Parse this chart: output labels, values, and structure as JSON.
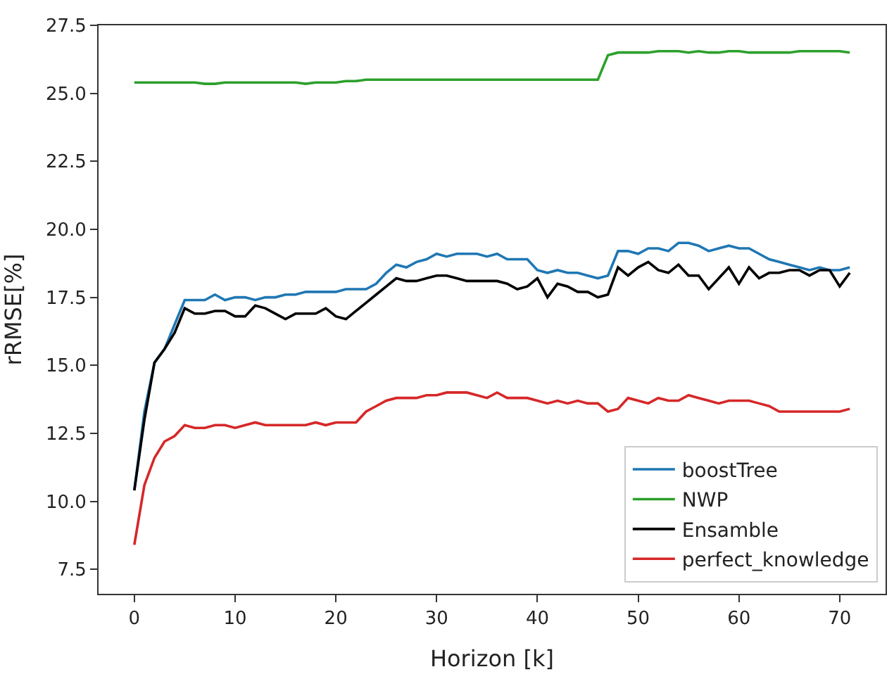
{
  "chart_data": {
    "type": "line",
    "xlabel": "Horizon [k]",
    "ylabel": "rRMSE[%]",
    "x": [
      0,
      1,
      2,
      3,
      4,
      5,
      6,
      7,
      8,
      9,
      10,
      11,
      12,
      13,
      14,
      15,
      16,
      17,
      18,
      19,
      20,
      21,
      22,
      23,
      24,
      25,
      26,
      27,
      28,
      29,
      30,
      31,
      32,
      33,
      34,
      35,
      36,
      37,
      38,
      39,
      40,
      41,
      42,
      43,
      44,
      45,
      46,
      47,
      48,
      49,
      50,
      51,
      52,
      53,
      54,
      55,
      56,
      57,
      58,
      59,
      60,
      61,
      62,
      63,
      64,
      65,
      66,
      67,
      68,
      69,
      70,
      71
    ],
    "series": [
      {
        "name": "boostTree",
        "color": "#1f77b4",
        "values": [
          10.4,
          13.3,
          15.1,
          15.6,
          16.5,
          17.4,
          17.4,
          17.4,
          17.6,
          17.4,
          17.5,
          17.5,
          17.4,
          17.5,
          17.5,
          17.6,
          17.6,
          17.7,
          17.7,
          17.7,
          17.7,
          17.8,
          17.8,
          17.8,
          18.0,
          18.4,
          18.7,
          18.6,
          18.8,
          18.9,
          19.1,
          19.0,
          19.1,
          19.1,
          19.1,
          19.0,
          19.1,
          18.9,
          18.9,
          18.9,
          18.5,
          18.4,
          18.5,
          18.4,
          18.4,
          18.3,
          18.2,
          18.3,
          19.2,
          19.2,
          19.1,
          19.3,
          19.3,
          19.2,
          19.5,
          19.5,
          19.4,
          19.2,
          19.3,
          19.4,
          19.3,
          19.3,
          19.1,
          18.9,
          18.8,
          18.7,
          18.6,
          18.5,
          18.6,
          18.5,
          18.5,
          18.6
        ]
      },
      {
        "name": "NWP",
        "color": "#2ca02c",
        "values": [
          25.4,
          25.4,
          25.4,
          25.4,
          25.4,
          25.4,
          25.4,
          25.35,
          25.35,
          25.4,
          25.4,
          25.4,
          25.4,
          25.4,
          25.4,
          25.4,
          25.4,
          25.35,
          25.4,
          25.4,
          25.4,
          25.45,
          25.45,
          25.5,
          25.5,
          25.5,
          25.5,
          25.5,
          25.5,
          25.5,
          25.5,
          25.5,
          25.5,
          25.5,
          25.5,
          25.5,
          25.5,
          25.5,
          25.5,
          25.5,
          25.5,
          25.5,
          25.5,
          25.5,
          25.5,
          25.5,
          25.5,
          26.4,
          26.5,
          26.5,
          26.5,
          26.5,
          26.55,
          26.55,
          26.55,
          26.5,
          26.55,
          26.5,
          26.5,
          26.55,
          26.55,
          26.5,
          26.5,
          26.5,
          26.5,
          26.5,
          26.55,
          26.55,
          26.55,
          26.55,
          26.55,
          26.5
        ]
      },
      {
        "name": "Ensamble",
        "color": "#000000",
        "values": [
          10.4,
          13.0,
          15.1,
          15.6,
          16.2,
          17.1,
          16.9,
          16.9,
          17.0,
          17.0,
          16.8,
          16.8,
          17.2,
          17.1,
          16.9,
          16.7,
          16.9,
          16.9,
          16.9,
          17.1,
          16.8,
          16.7,
          17.0,
          17.3,
          17.6,
          17.9,
          18.2,
          18.1,
          18.1,
          18.2,
          18.3,
          18.3,
          18.2,
          18.1,
          18.1,
          18.1,
          18.1,
          18.0,
          17.8,
          17.9,
          18.2,
          17.5,
          18.0,
          17.9,
          17.7,
          17.7,
          17.5,
          17.6,
          18.6,
          18.3,
          18.6,
          18.8,
          18.5,
          18.4,
          18.7,
          18.3,
          18.3,
          17.8,
          18.2,
          18.6,
          18.0,
          18.6,
          18.2,
          18.4,
          18.4,
          18.5,
          18.5,
          18.3,
          18.5,
          18.5,
          17.9,
          18.4
        ]
      },
      {
        "name": "perfect_knowledge",
        "color": "#d62728",
        "values": [
          8.4,
          10.6,
          11.6,
          12.2,
          12.4,
          12.8,
          12.7,
          12.7,
          12.8,
          12.8,
          12.7,
          12.8,
          12.9,
          12.8,
          12.8,
          12.8,
          12.8,
          12.8,
          12.9,
          12.8,
          12.9,
          12.9,
          12.9,
          13.3,
          13.5,
          13.7,
          13.8,
          13.8,
          13.8,
          13.9,
          13.9,
          14.0,
          14.0,
          14.0,
          13.9,
          13.8,
          14.0,
          13.8,
          13.8,
          13.8,
          13.7,
          13.6,
          13.7,
          13.6,
          13.7,
          13.6,
          13.6,
          13.3,
          13.4,
          13.8,
          13.7,
          13.6,
          13.8,
          13.7,
          13.7,
          13.9,
          13.8,
          13.7,
          13.6,
          13.7,
          13.7,
          13.7,
          13.6,
          13.5,
          13.3,
          13.3,
          13.3,
          13.3,
          13.3,
          13.3,
          13.3,
          13.4
        ]
      }
    ],
    "xlim": [
      -3.55,
      74.55
    ],
    "xticks": [
      0,
      10,
      20,
      30,
      40,
      50,
      60,
      70
    ],
    "ylim": [
      6.6,
      27.5
    ],
    "yticks": [
      {
        "value": 7.5,
        "label": "7.5"
      },
      {
        "value": 10,
        "label": "10.0"
      },
      {
        "value": 12.5,
        "label": "12.5"
      },
      {
        "value": 15,
        "label": "15.0"
      },
      {
        "value": 17.5,
        "label": "17.5"
      },
      {
        "value": 20,
        "label": "20.0"
      },
      {
        "value": 22.5,
        "label": "22.5"
      },
      {
        "value": 25,
        "label": "25.0"
      },
      {
        "value": 27.5,
        "label": "27.5"
      }
    ],
    "legend": "bottom right",
    "marker": "none",
    "line_style": "solid"
  }
}
